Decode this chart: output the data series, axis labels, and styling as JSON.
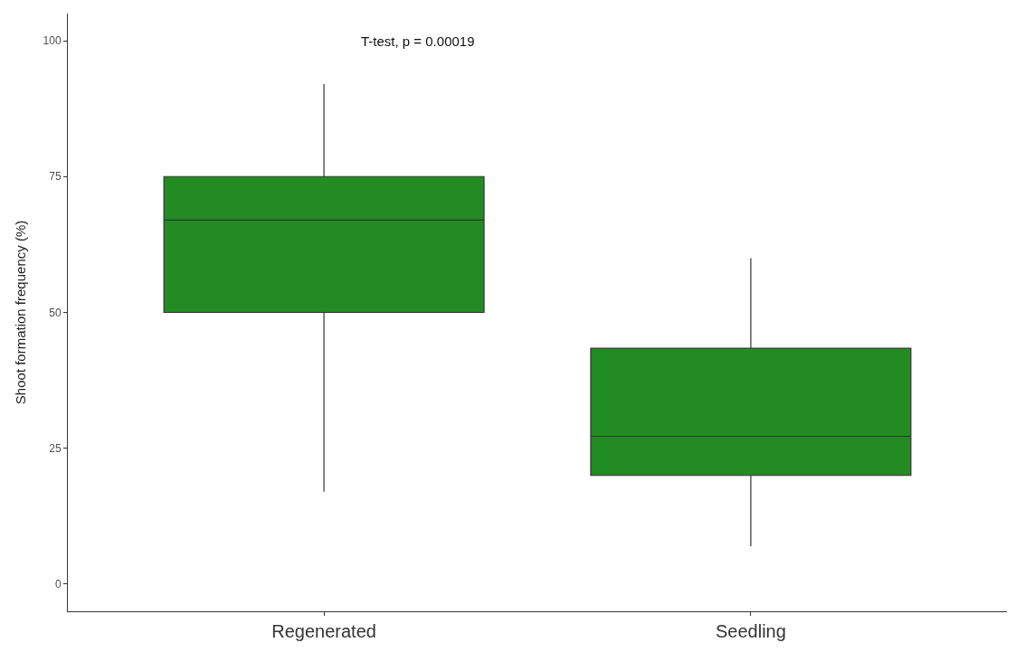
{
  "chart_data": {
    "type": "box",
    "ylabel": "Shoot formation frequency (%)",
    "annotations": [
      "T-test, p = 0.00019"
    ],
    "categories": [
      "Regenerated",
      "Seedling"
    ],
    "boxes": [
      {
        "low": 17,
        "q1": 50,
        "median": 67,
        "q3": 75,
        "high": 92
      },
      {
        "low": 7,
        "q1": 20,
        "median": 27.2,
        "q3": 43.4,
        "high": 60
      }
    ],
    "color": "#228b22",
    "ylim": [
      -5,
      105
    ],
    "yticks": [
      0,
      25,
      50,
      75,
      100
    ],
    "legend": false
  }
}
